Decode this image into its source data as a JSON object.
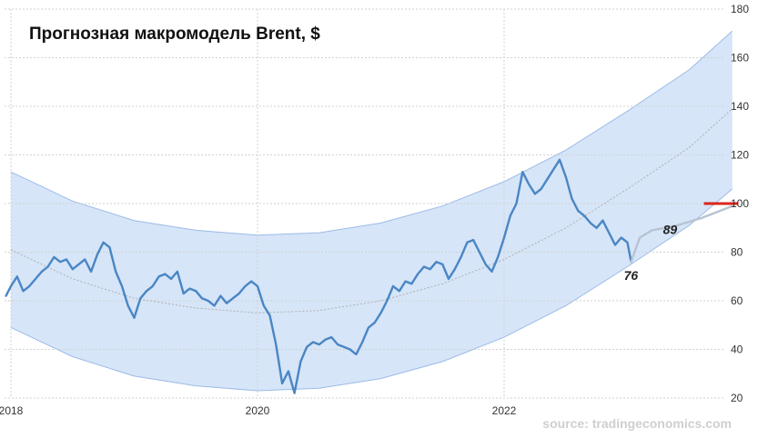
{
  "chart_data": {
    "type": "line",
    "title": "Прогнозная макромодель Brent, $",
    "source": "source: tradingeconomics.com",
    "xlabel": "",
    "ylabel": "",
    "x_range": [
      2017.95,
      2023.9
    ],
    "ylim": [
      20,
      180
    ],
    "y_ticks": [
      20,
      40,
      60,
      80,
      100,
      120,
      140,
      160,
      180
    ],
    "y_tick_labels": [
      "20",
      "40",
      "60",
      "80",
      "100",
      "120",
      "140",
      "160",
      "180"
    ],
    "x_ticks": [
      2018,
      2020,
      2022
    ],
    "x_tick_labels": [
      "2018",
      "2020",
      "2022"
    ],
    "grid": true,
    "colors": {
      "price": "#4a86c4",
      "band": "#cfe0f7",
      "band_edge": "#9cbbe6",
      "trend": "#b0b0b0",
      "forecast": "#b7c3d3",
      "target": "#d9261c"
    },
    "band": {
      "upper": [
        [
          2018.0,
          113
        ],
        [
          2018.5,
          101
        ],
        [
          2019.0,
          93
        ],
        [
          2019.5,
          89
        ],
        [
          2020.0,
          87
        ],
        [
          2020.5,
          88
        ],
        [
          2021.0,
          92
        ],
        [
          2021.5,
          99
        ],
        [
          2022.0,
          109
        ],
        [
          2022.5,
          122
        ],
        [
          2023.0,
          138
        ],
        [
          2023.5,
          155
        ],
        [
          2023.85,
          171
        ]
      ],
      "lower": [
        [
          2018.0,
          49
        ],
        [
          2018.5,
          37
        ],
        [
          2019.0,
          29
        ],
        [
          2019.5,
          25
        ],
        [
          2020.0,
          23
        ],
        [
          2020.5,
          24
        ],
        [
          2021.0,
          28
        ],
        [
          2021.5,
          35
        ],
        [
          2022.0,
          45
        ],
        [
          2022.5,
          58
        ],
        [
          2023.0,
          74
        ],
        [
          2023.5,
          91
        ],
        [
          2023.85,
          106
        ]
      ]
    },
    "trend": [
      [
        2018.0,
        81
      ],
      [
        2018.5,
        69
      ],
      [
        2019.0,
        61
      ],
      [
        2019.5,
        57
      ],
      [
        2020.0,
        55
      ],
      [
        2020.5,
        56
      ],
      [
        2021.0,
        60
      ],
      [
        2021.5,
        67
      ],
      [
        2022.0,
        77
      ],
      [
        2022.5,
        90
      ],
      [
        2023.0,
        106
      ],
      [
        2023.5,
        123
      ],
      [
        2023.85,
        139
      ]
    ],
    "series": [
      {
        "points": [
          [
            2017.96,
            62
          ],
          [
            2018.0,
            66
          ],
          [
            2018.05,
            70
          ],
          [
            2018.1,
            64
          ],
          [
            2018.15,
            66
          ],
          [
            2018.2,
            69
          ],
          [
            2018.25,
            72
          ],
          [
            2018.3,
            74
          ],
          [
            2018.35,
            78
          ],
          [
            2018.4,
            76
          ],
          [
            2018.45,
            77
          ],
          [
            2018.5,
            73
          ],
          [
            2018.55,
            75
          ],
          [
            2018.6,
            77
          ],
          [
            2018.65,
            72
          ],
          [
            2018.7,
            79
          ],
          [
            2018.75,
            84
          ],
          [
            2018.8,
            82
          ],
          [
            2018.85,
            72
          ],
          [
            2018.9,
            66
          ],
          [
            2018.95,
            58
          ],
          [
            2019.0,
            53
          ],
          [
            2019.05,
            61
          ],
          [
            2019.1,
            64
          ],
          [
            2019.15,
            66
          ],
          [
            2019.2,
            70
          ],
          [
            2019.25,
            71
          ],
          [
            2019.3,
            69
          ],
          [
            2019.35,
            72
          ],
          [
            2019.4,
            63
          ],
          [
            2019.45,
            65
          ],
          [
            2019.5,
            64
          ],
          [
            2019.55,
            61
          ],
          [
            2019.6,
            60
          ],
          [
            2019.65,
            58
          ],
          [
            2019.7,
            62
          ],
          [
            2019.75,
            59
          ],
          [
            2019.8,
            61
          ],
          [
            2019.85,
            63
          ],
          [
            2019.9,
            66
          ],
          [
            2019.95,
            68
          ],
          [
            2020.0,
            66
          ],
          [
            2020.05,
            58
          ],
          [
            2020.1,
            54
          ],
          [
            2020.15,
            42
          ],
          [
            2020.2,
            26
          ],
          [
            2020.25,
            31
          ],
          [
            2020.3,
            22
          ],
          [
            2020.35,
            35
          ],
          [
            2020.4,
            41
          ],
          [
            2020.45,
            43
          ],
          [
            2020.5,
            42
          ],
          [
            2020.55,
            44
          ],
          [
            2020.6,
            45
          ],
          [
            2020.65,
            42
          ],
          [
            2020.7,
            41
          ],
          [
            2020.75,
            40
          ],
          [
            2020.8,
            38
          ],
          [
            2020.85,
            43
          ],
          [
            2020.9,
            49
          ],
          [
            2020.95,
            51
          ],
          [
            2021.0,
            55
          ],
          [
            2021.05,
            60
          ],
          [
            2021.1,
            66
          ],
          [
            2021.15,
            64
          ],
          [
            2021.2,
            68
          ],
          [
            2021.25,
            67
          ],
          [
            2021.3,
            71
          ],
          [
            2021.35,
            74
          ],
          [
            2021.4,
            73
          ],
          [
            2021.45,
            76
          ],
          [
            2021.5,
            75
          ],
          [
            2021.55,
            69
          ],
          [
            2021.6,
            73
          ],
          [
            2021.65,
            78
          ],
          [
            2021.7,
            84
          ],
          [
            2021.75,
            85
          ],
          [
            2021.8,
            80
          ],
          [
            2021.85,
            75
          ],
          [
            2021.9,
            72
          ],
          [
            2021.95,
            78
          ],
          [
            2022.0,
            86
          ],
          [
            2022.05,
            95
          ],
          [
            2022.1,
            100
          ],
          [
            2022.15,
            113
          ],
          [
            2022.2,
            108
          ],
          [
            2022.25,
            104
          ],
          [
            2022.3,
            106
          ],
          [
            2022.35,
            110
          ],
          [
            2022.4,
            114
          ],
          [
            2022.45,
            118
          ],
          [
            2022.5,
            111
          ],
          [
            2022.55,
            102
          ],
          [
            2022.6,
            97
          ],
          [
            2022.65,
            95
          ],
          [
            2022.7,
            92
          ],
          [
            2022.75,
            90
          ],
          [
            2022.8,
            93
          ],
          [
            2022.85,
            88
          ],
          [
            2022.9,
            83
          ],
          [
            2022.95,
            86
          ],
          [
            2023.0,
            84
          ],
          [
            2023.03,
            76
          ]
        ]
      },
      {
        "points": [
          [
            2023.03,
            76
          ],
          [
            2023.1,
            86
          ],
          [
            2023.2,
            89
          ],
          [
            2023.4,
            91
          ],
          [
            2023.6,
            94
          ],
          [
            2023.85,
            99
          ]
        ]
      }
    ],
    "annotations": [
      {
        "text": "89",
        "x": 2023.2,
        "y": 89
      },
      {
        "text": "76",
        "x": 2023.03,
        "y": 76
      }
    ],
    "target_line": {
      "y": 100,
      "x_start": 2023.62,
      "x_end": 2023.9
    }
  }
}
